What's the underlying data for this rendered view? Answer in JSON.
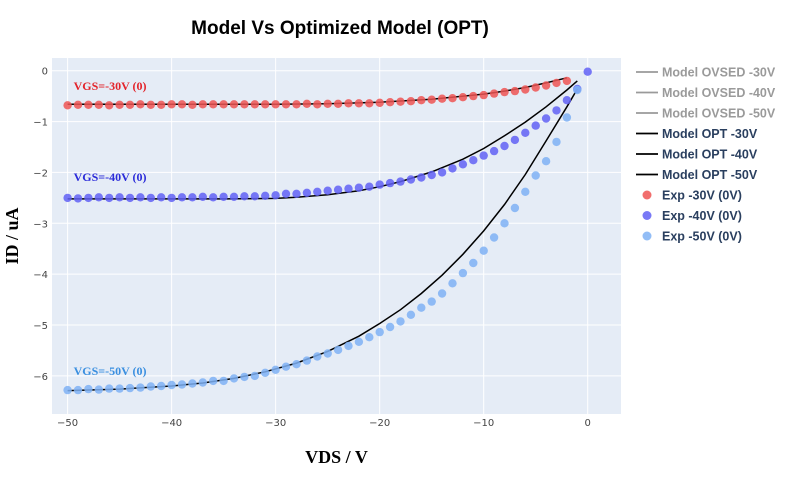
{
  "chart_data": {
    "type": "scatter",
    "title": "Model Vs Optimized Model (OPT)",
    "xlabel": "VDS / V",
    "ylabel": "ID / uA",
    "xlim": [
      -51.5,
      3.2
    ],
    "ylim": [
      -6.75,
      0.25
    ],
    "x_ticks": [
      -50,
      -40,
      -30,
      -20,
      -10,
      0
    ],
    "x_tick_labels": [
      "−50",
      "−40",
      "−30",
      "−20",
      "−10",
      "0"
    ],
    "y_ticks": [
      0,
      -1,
      -2,
      -3,
      -4,
      -5,
      -6
    ],
    "y_tick_labels": [
      "0",
      "−1",
      "−2",
      "−3",
      "−4",
      "−5",
      "−6"
    ],
    "grid": true,
    "legend_position": "right",
    "series": [
      {
        "name": "Model OVSED -30V",
        "kind": "line",
        "color": "#7f7f7f",
        "visible": false
      },
      {
        "name": "Model OVSED -40V",
        "kind": "line",
        "color": "#7f7f7f",
        "visible": false
      },
      {
        "name": "Model OVSED -50V",
        "kind": "line",
        "color": "#7f7f7f",
        "visible": false
      },
      {
        "name": "Model OPT -30V",
        "kind": "line",
        "color": "#000000",
        "x": [
          -50,
          -45,
          -40,
          -35,
          -30,
          -25,
          -20,
          -15,
          -10,
          -8,
          -6,
          -4,
          -2
        ],
        "y": [
          -0.66,
          -0.66,
          -0.66,
          -0.66,
          -0.66,
          -0.65,
          -0.62,
          -0.56,
          -0.46,
          -0.4,
          -0.33,
          -0.24,
          -0.14
        ]
      },
      {
        "name": "Model OPT -40V",
        "kind": "line",
        "color": "#000000",
        "x": [
          -50,
          -45,
          -40,
          -35,
          -30,
          -28,
          -25,
          -22,
          -20,
          -18,
          -15,
          -12,
          -10,
          -8,
          -6,
          -4,
          -2,
          -1
        ],
        "y": [
          -2.52,
          -2.52,
          -2.52,
          -2.52,
          -2.51,
          -2.49,
          -2.44,
          -2.36,
          -2.28,
          -2.18,
          -1.99,
          -1.74,
          -1.53,
          -1.28,
          -1.01,
          -0.71,
          -0.38,
          -0.2
        ]
      },
      {
        "name": "Model OPT -50V",
        "kind": "line",
        "color": "#000000",
        "x": [
          -50,
          -45,
          -40,
          -37,
          -34,
          -31,
          -28,
          -25,
          -22,
          -20,
          -18,
          -16,
          -14,
          -12,
          -10,
          -8,
          -6,
          -4,
          -2,
          -1
        ],
        "y": [
          -6.29,
          -6.26,
          -6.2,
          -6.14,
          -6.05,
          -5.92,
          -5.75,
          -5.52,
          -5.22,
          -4.97,
          -4.7,
          -4.38,
          -4.02,
          -3.61,
          -3.15,
          -2.63,
          -2.04,
          -1.38,
          -0.71,
          -0.36
        ]
      },
      {
        "name": "Exp  -30V  (0V)",
        "kind": "markers",
        "color": "#ef5553",
        "x": [
          -50,
          -49,
          -48,
          -47,
          -46,
          -45,
          -44,
          -43,
          -42,
          -41,
          -40,
          -39,
          -38,
          -37,
          -36,
          -35,
          -34,
          -33,
          -32,
          -31,
          -30,
          -29,
          -28,
          -27,
          -26,
          -25,
          -24,
          -23,
          -22,
          -21,
          -20,
          -19,
          -18,
          -17,
          -16,
          -15,
          -14,
          -13,
          -12,
          -11,
          -10,
          -9,
          -8,
          -7,
          -6,
          -5,
          -4,
          -3,
          -2
        ],
        "y": [
          -0.68,
          -0.67,
          -0.67,
          -0.67,
          -0.68,
          -0.67,
          -0.67,
          -0.66,
          -0.67,
          -0.67,
          -0.66,
          -0.66,
          -0.67,
          -0.66,
          -0.66,
          -0.66,
          -0.66,
          -0.66,
          -0.66,
          -0.66,
          -0.66,
          -0.66,
          -0.66,
          -0.65,
          -0.66,
          -0.65,
          -0.65,
          -0.64,
          -0.64,
          -0.64,
          -0.63,
          -0.62,
          -0.61,
          -0.6,
          -0.58,
          -0.57,
          -0.55,
          -0.54,
          -0.52,
          -0.5,
          -0.48,
          -0.45,
          -0.42,
          -0.4,
          -0.37,
          -0.33,
          -0.29,
          -0.24,
          -0.2
        ]
      },
      {
        "name": "Exp  -40V  (0V)",
        "kind": "markers",
        "color": "#6161f4",
        "x": [
          -50,
          -49,
          -48,
          -47,
          -46,
          -45,
          -44,
          -43,
          -42,
          -41,
          -40,
          -39,
          -38,
          -37,
          -36,
          -35,
          -34,
          -33,
          -32,
          -31,
          -30,
          -29,
          -28,
          -27,
          -26,
          -25,
          -24,
          -23,
          -22,
          -21,
          -20,
          -19,
          -18,
          -17,
          -16,
          -15,
          -14,
          -13,
          -12,
          -11,
          -10,
          -9,
          -8,
          -7,
          -6,
          -5,
          -4,
          -3,
          -2,
          -1,
          0
        ],
        "y": [
          -2.5,
          -2.51,
          -2.5,
          -2.49,
          -2.5,
          -2.49,
          -2.5,
          -2.49,
          -2.5,
          -2.49,
          -2.5,
          -2.49,
          -2.49,
          -2.48,
          -2.49,
          -2.48,
          -2.48,
          -2.47,
          -2.47,
          -2.46,
          -2.45,
          -2.42,
          -2.42,
          -2.4,
          -2.38,
          -2.36,
          -2.34,
          -2.32,
          -2.3,
          -2.28,
          -2.24,
          -2.21,
          -2.18,
          -2.14,
          -2.1,
          -2.05,
          -2.0,
          -1.92,
          -1.84,
          -1.76,
          -1.67,
          -1.58,
          -1.48,
          -1.36,
          -1.22,
          -1.08,
          -0.94,
          -0.78,
          -0.58,
          -0.36,
          -0.02
        ]
      },
      {
        "name": "Exp  -50V  (0V)",
        "kind": "markers",
        "color": "#7fb2f5",
        "x": [
          -50,
          -49,
          -48,
          -47,
          -46,
          -45,
          -44,
          -43,
          -42,
          -41,
          -40,
          -39,
          -38,
          -37,
          -36,
          -35,
          -34,
          -33,
          -32,
          -31,
          -30,
          -29,
          -28,
          -27,
          -26,
          -25,
          -24,
          -23,
          -22,
          -21,
          -20,
          -19,
          -18,
          -17,
          -16,
          -15,
          -14,
          -13,
          -12,
          -11,
          -10,
          -9,
          -8,
          -7,
          -6,
          -5,
          -4,
          -3,
          -2,
          -1
        ],
        "y": [
          -6.28,
          -6.28,
          -6.26,
          -6.27,
          -6.25,
          -6.25,
          -6.24,
          -6.23,
          -6.21,
          -6.2,
          -6.18,
          -6.17,
          -6.15,
          -6.13,
          -6.1,
          -6.1,
          -6.05,
          -6.02,
          -6.0,
          -5.94,
          -5.88,
          -5.82,
          -5.77,
          -5.7,
          -5.62,
          -5.56,
          -5.49,
          -5.41,
          -5.33,
          -5.24,
          -5.14,
          -5.04,
          -4.93,
          -4.8,
          -4.66,
          -4.54,
          -4.38,
          -4.18,
          -3.98,
          -3.78,
          -3.54,
          -3.28,
          -3.0,
          -2.7,
          -2.38,
          -2.06,
          -1.78,
          -1.4,
          -0.92,
          -0.38
        ]
      }
    ],
    "annotations": [
      {
        "text": "VGS=-30V  (0)",
        "color": "#e3242b",
        "x": -50,
        "y": -0.38
      },
      {
        "text": "VGS=-40V  (0)",
        "color": "#2b2bd9",
        "x": -50,
        "y": -2.17
      },
      {
        "text": "VGS=-50V  (0)",
        "color": "#3a8fe0",
        "x": -50,
        "y": -5.98
      }
    ]
  }
}
